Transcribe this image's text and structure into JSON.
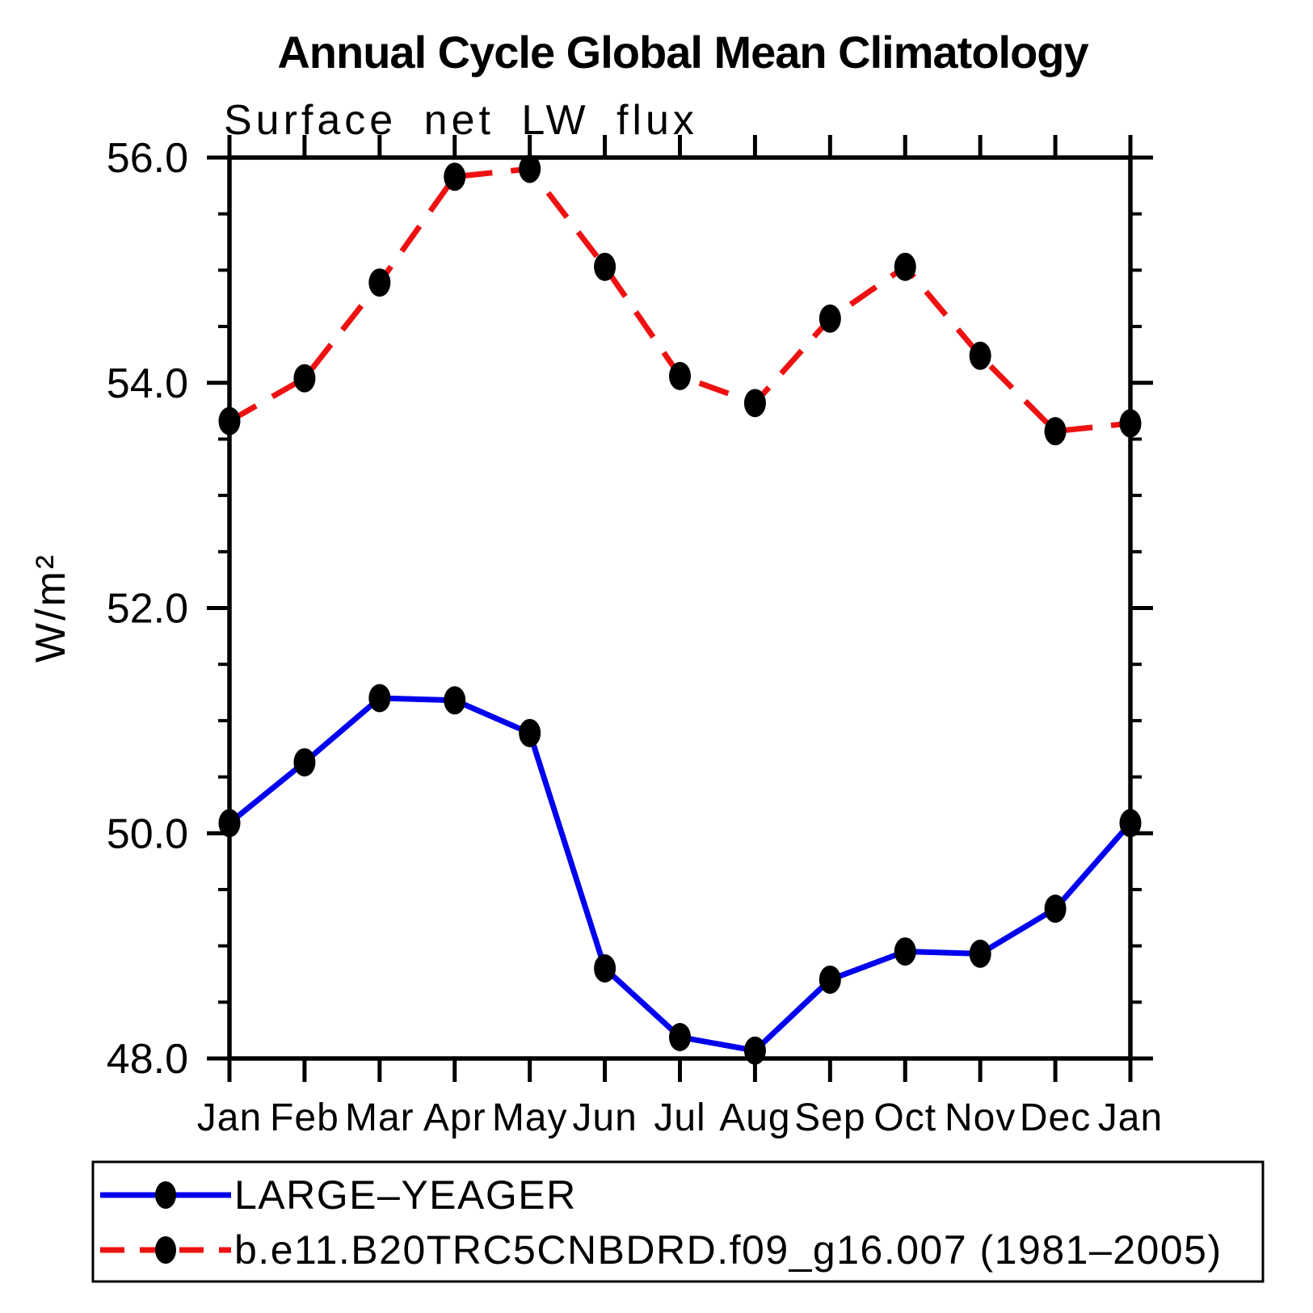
{
  "chart_data": {
    "type": "line",
    "title": "Annual Cycle Global Mean Climatology",
    "subtitle": "Surface net LW flux",
    "ylabel": "W/m²",
    "categories": [
      "Jan",
      "Feb",
      "Mar",
      "Apr",
      "May",
      "Jun",
      "Jul",
      "Aug",
      "Sep",
      "Oct",
      "Nov",
      "Dec",
      "Jan"
    ],
    "ylim": [
      48.0,
      56.0
    ],
    "ytick_values": [
      56.0,
      54.0,
      52.0,
      50.0,
      48.0
    ],
    "ytick_labels": [
      "56.0",
      "54.0",
      "52.0",
      "50.0",
      "48.0"
    ],
    "ytick_minor_step": 0.5,
    "grid": false,
    "legend_position": "bottom-left-box",
    "series": [
      {
        "name": "LARGE–YEAGER",
        "color": "#0000ee",
        "line_style": "solid",
        "marker": "filled-black-dot",
        "marker_color": "#000000",
        "values": [
          50.09,
          50.63,
          51.2,
          51.18,
          50.89,
          48.8,
          48.19,
          48.07,
          48.7,
          48.95,
          48.93,
          49.33,
          50.09
        ]
      },
      {
        "name": "b.e11.B20TRC5CNBDRD.f09_g16.007 (1981–2005)",
        "color": "#ee1111",
        "line_style": "dashed",
        "marker": "filled-black-dot",
        "marker_color": "#000000",
        "values": [
          53.66,
          54.04,
          54.89,
          55.83,
          55.9,
          55.03,
          54.06,
          53.82,
          54.57,
          55.03,
          54.24,
          53.57,
          53.64
        ]
      }
    ]
  },
  "colors": {
    "background": "#ffffff",
    "axis": "#000000",
    "text": "#000000"
  }
}
